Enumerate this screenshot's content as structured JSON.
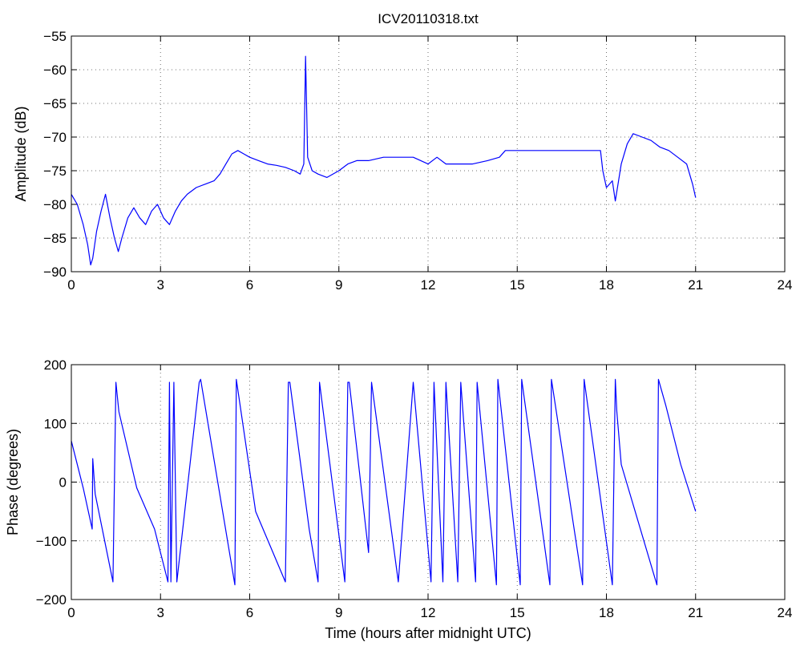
{
  "chart_data": [
    {
      "type": "line",
      "title": "ICV20110318.txt",
      "xlabel": "",
      "ylabel": "Amplitude (dB)",
      "xlim": [
        0,
        24
      ],
      "ylim": [
        -90,
        -55
      ],
      "xticks": [
        "0",
        "3",
        "6",
        "9",
        "12",
        "15",
        "18",
        "21",
        "24"
      ],
      "yticks": [
        "-90",
        "-85",
        "-80",
        "-75",
        "-70",
        "-65",
        "-60",
        "-55"
      ],
      "grid": true,
      "line_color": "#0000ff",
      "series": [
        {
          "x": [
            0,
            0.2,
            0.4,
            0.55,
            0.65,
            0.72,
            0.85,
            1.0,
            1.15,
            1.3,
            1.45,
            1.58,
            1.7,
            1.9,
            2.1,
            2.3,
            2.5,
            2.7,
            2.9,
            3.1,
            3.3,
            3.5,
            3.7,
            3.9,
            4.2,
            4.5,
            4.8,
            5.0,
            5.2,
            5.4,
            5.6,
            5.8,
            6.0,
            6.3,
            6.6,
            6.9,
            7.2,
            7.5,
            7.7,
            7.82,
            7.88,
            7.95,
            8.1,
            8.3,
            8.6,
            9.0,
            9.3,
            9.6,
            10.0,
            10.5,
            11.0,
            11.5,
            12.0,
            12.3,
            12.6,
            13.0,
            13.5,
            14.0,
            14.4,
            14.6,
            15.0,
            15.5,
            16.0,
            16.5,
            17.0,
            17.5,
            17.8,
            17.88,
            18.0,
            18.2,
            18.3,
            18.5,
            18.7,
            18.9,
            19.2,
            19.5,
            19.8,
            20.1,
            20.4,
            20.7,
            20.9,
            21.0
          ],
          "values": [
            -78.5,
            -80,
            -83,
            -86,
            -89,
            -88,
            -84,
            -81,
            -78.5,
            -82,
            -85,
            -87,
            -85,
            -82,
            -80.5,
            -82,
            -83,
            -81,
            -80,
            -82,
            -83,
            -81,
            -79.5,
            -78.5,
            -77.5,
            -77,
            -76.5,
            -75.5,
            -74,
            -72.5,
            -72,
            -72.5,
            -73,
            -73.5,
            -74,
            -74.2,
            -74.5,
            -75,
            -75.5,
            -74,
            -58,
            -73,
            -75,
            -75.5,
            -76,
            -75,
            -74,
            -73.5,
            -73.5,
            -73,
            -73,
            -73,
            -74,
            -73,
            -74,
            -74,
            -74,
            -73.5,
            -73,
            -72,
            -72,
            -72,
            -72,
            -72,
            -72,
            -72,
            -72,
            -75,
            -77.5,
            -76.5,
            -79.5,
            -74,
            -71,
            -69.5,
            -70,
            -70.5,
            -71.5,
            -72,
            -73,
            -74,
            -77,
            -79
          ]
        }
      ]
    },
    {
      "type": "line",
      "title": "",
      "xlabel": "Time (hours after midnight UTC)",
      "ylabel": "Phase (degrees)",
      "xlim": [
        0,
        24
      ],
      "ylim": [
        -200,
        200
      ],
      "xticks": [
        "0",
        "3",
        "6",
        "9",
        "12",
        "15",
        "18",
        "21",
        "24"
      ],
      "yticks": [
        "-200",
        "-100",
        "0",
        "100",
        "200"
      ],
      "grid": true,
      "line_color": "#0000ff",
      "series": [
        {
          "x": [
            0,
            0.4,
            0.7,
            0.72,
            0.8,
            1.4,
            1.5,
            1.6,
            2.2,
            2.8,
            3.25,
            3.3,
            3.35,
            3.45,
            3.55,
            4.3,
            4.35,
            5.5,
            5.55,
            6.2,
            7.2,
            7.3,
            7.35,
            8.0,
            8.3,
            8.35,
            9.2,
            9.3,
            9.35,
            10.0,
            10.1,
            11.0,
            11.5,
            12.1,
            12.2,
            12.5,
            12.6,
            13.0,
            13.1,
            13.6,
            13.65,
            14.3,
            14.35,
            15.1,
            15.15,
            16.1,
            16.15,
            17.2,
            17.25,
            18.2,
            18.3,
            18.35,
            18.5,
            19.7,
            19.75,
            20.0,
            20.5,
            21.0
          ],
          "values": [
            70,
            -10,
            -80,
            40,
            -20,
            -170,
            170,
            120,
            -10,
            -80,
            -170,
            170,
            -170,
            170,
            -170,
            170,
            175,
            -175,
            175,
            -50,
            -170,
            170,
            170,
            -80,
            -170,
            170,
            -170,
            170,
            170,
            -120,
            170,
            -170,
            170,
            -170,
            170,
            -170,
            170,
            -170,
            170,
            -170,
            170,
            -175,
            175,
            -175,
            175,
            -175,
            175,
            -175,
            175,
            -175,
            175,
            120,
            30,
            -175,
            175,
            130,
            30,
            -50
          ]
        }
      ]
    }
  ]
}
